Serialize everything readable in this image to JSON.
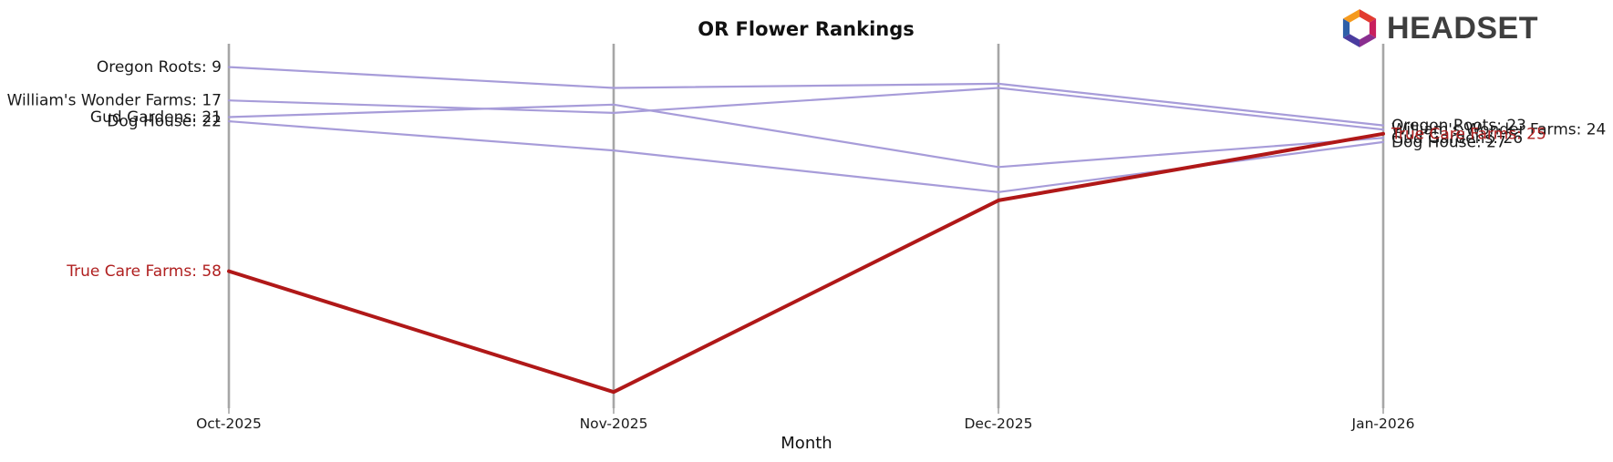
{
  "header": {
    "title": "OR Flower Rankings",
    "logo_text": "HEADSET"
  },
  "axis": {
    "xlabel": "Month",
    "categories": [
      "Oct-2025",
      "Nov-2025",
      "Dec-2025",
      "Jan-2026"
    ]
  },
  "colors": {
    "line_default": "#a79cd9",
    "line_highlight": "#b01818",
    "text_default": "#1a1a1a",
    "text_highlight": "#b02020",
    "axis": "#a6a6a6",
    "title": "#111111",
    "logo_text": "#3e3e3e"
  },
  "logo": {
    "icon_name": "headset-hexagon-icon",
    "segment_colors": [
      "#F59A1E",
      "#E23B30",
      "#C81F5E",
      "#8A2E8F",
      "#4A3C9F",
      "#2E5FA8"
    ]
  },
  "chart_data": {
    "type": "line",
    "title": "OR Flower Rankings",
    "xlabel": "Month",
    "x": [
      "Oct-2025",
      "Nov-2025",
      "Dec-2025",
      "Jan-2026"
    ],
    "y_axis": "ranking (inverted: lower rank number plotted higher; no y tick labels shown)",
    "grid": "vertical month axes only",
    "legend": "none (series labeled at line endpoints)",
    "note": "Only first and last values are labeled in the chart; Nov-2025 and Dec-2025 values are estimated from line pixel positions.",
    "series": [
      {
        "name": "Oregon Roots",
        "highlight": false,
        "values": [
          9,
          14,
          13,
          23
        ],
        "left_label": "Oregon Roots: 9",
        "right_label": "Oregon Roots: 23"
      },
      {
        "name": "William's Wonder Farms",
        "highlight": false,
        "values": [
          17,
          20,
          14,
          24
        ],
        "left_label": "William's Wonder Farms: 17",
        "right_label": "William's Wonder Farms: 24"
      },
      {
        "name": "Gud Gardens",
        "highlight": false,
        "values": [
          21,
          18,
          33,
          26
        ],
        "left_label": "Gud Gardens: 21",
        "right_label": "Gud Gardens: 26"
      },
      {
        "name": "Dog House",
        "highlight": false,
        "values": [
          22,
          29,
          39,
          27
        ],
        "left_label": "Dog House: 22",
        "right_label": "Dog House: 27"
      },
      {
        "name": "True Care Farms",
        "highlight": true,
        "values": [
          58,
          87,
          41,
          25
        ],
        "left_label": "True Care Farms: 58",
        "right_label": "True Care Farms: 25"
      }
    ]
  }
}
